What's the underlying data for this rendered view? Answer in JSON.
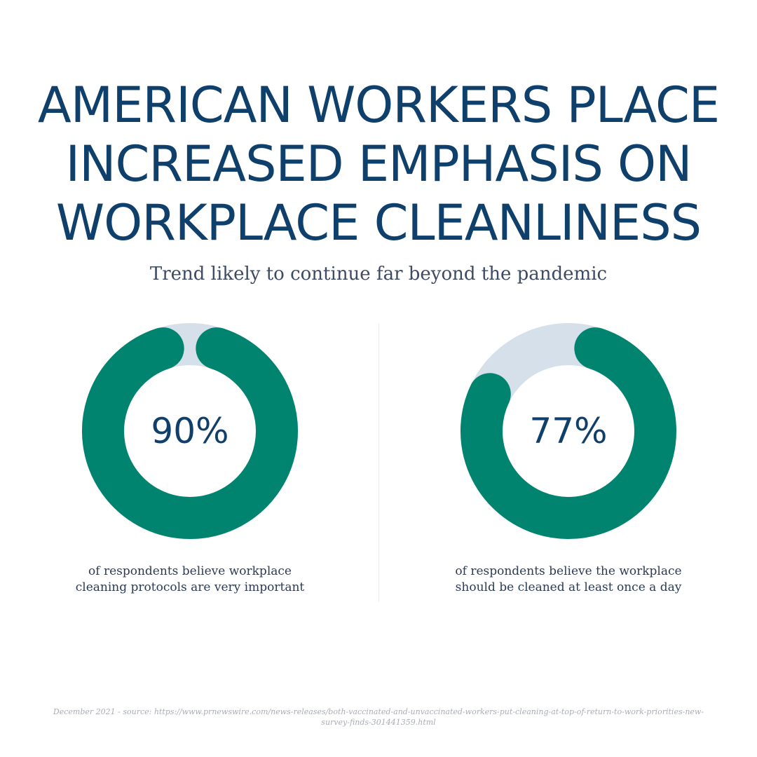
{
  "header": {
    "title_lines": [
      "AMERICAN WORKERS PLACE",
      "INCREASED EMPHASIS ON",
      "WORKPLACE CLEANLINESS"
    ],
    "subtitle": "Trend likely to continue far beyond the pandemic"
  },
  "chart_data": [
    {
      "type": "pie",
      "style": "donut",
      "value": 90,
      "remainder": 10,
      "value_label": "90%",
      "caption": "of respondents believe workplace cleaning protocols are very important",
      "colors": {
        "value": "#00846f",
        "remainder": "#d6e0ea"
      }
    },
    {
      "type": "pie",
      "style": "donut",
      "value": 77,
      "remainder": 23,
      "value_label": "77%",
      "caption": "of respondents believe the workplace should be cleaned at least once a day",
      "colors": {
        "value": "#00846f",
        "remainder": "#d6e0ea"
      }
    }
  ],
  "footer": {
    "source": "December 2021 - source: https://www.prnewswire.com/news-releases/both-vaccinated-and-unvaccinated-workers-put-cleaning-at-top-of-return-to-work-priorities-new-survey-finds-301441359.html"
  },
  "colors": {
    "title": "#0f3f6b",
    "accent": "#00846f",
    "track": "#d6e0ea",
    "caption": "#2c3b55",
    "source": "#a9adb5"
  }
}
